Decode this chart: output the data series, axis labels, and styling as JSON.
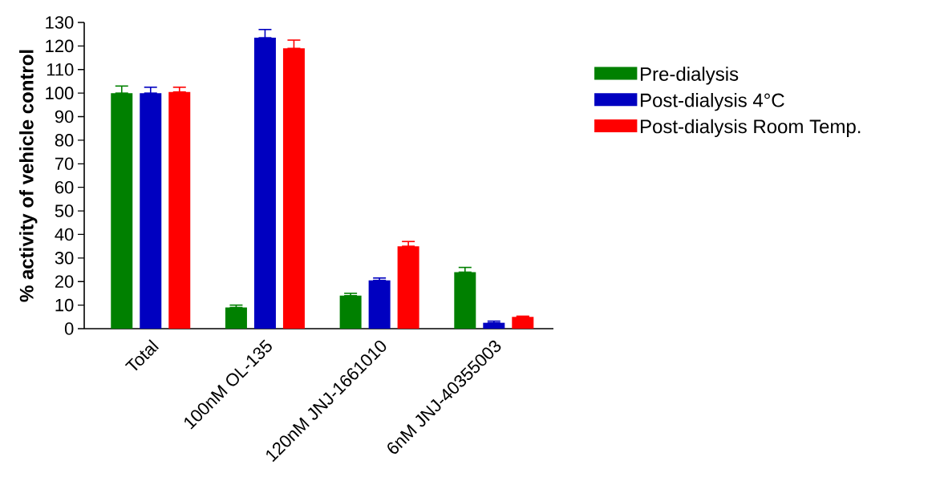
{
  "chart_data": {
    "type": "bar",
    "ylabel": "% activity of vehicle control",
    "categories": [
      "Total",
      "100nM OL-135",
      "120nM JNJ-1661010",
      "6nM JNJ-40355003"
    ],
    "series": [
      {
        "name": "Pre-dialysis",
        "color": "#008000",
        "values": [
          100,
          9,
          14,
          24
        ],
        "errors": [
          [
            100,
            103
          ],
          [
            9,
            10
          ],
          [
            14,
            15
          ],
          [
            24,
            26
          ]
        ]
      },
      {
        "name": "Post-dialysis 4°C",
        "color": "#0000c0",
        "values": [
          100,
          123.5,
          20.5,
          2.5
        ],
        "errors": [
          [
            100,
            102.5
          ],
          [
            123.5,
            127
          ],
          [
            20.5,
            21.5
          ],
          [
            2.5,
            3.2
          ]
        ]
      },
      {
        "name": "Post-dialysis Room Temp.",
        "color": "#ff0000",
        "values": [
          100.5,
          119,
          35,
          5
        ],
        "errors": [
          [
            100.5,
            102.5
          ],
          [
            119,
            122.5
          ],
          [
            35,
            37
          ],
          [
            5,
            5.3
          ]
        ]
      }
    ],
    "ylim": [
      0,
      130
    ],
    "yticks": [
      0,
      10,
      20,
      30,
      40,
      50,
      60,
      70,
      80,
      90,
      100,
      110,
      120,
      130
    ],
    "legend": "right",
    "grid": false
  }
}
